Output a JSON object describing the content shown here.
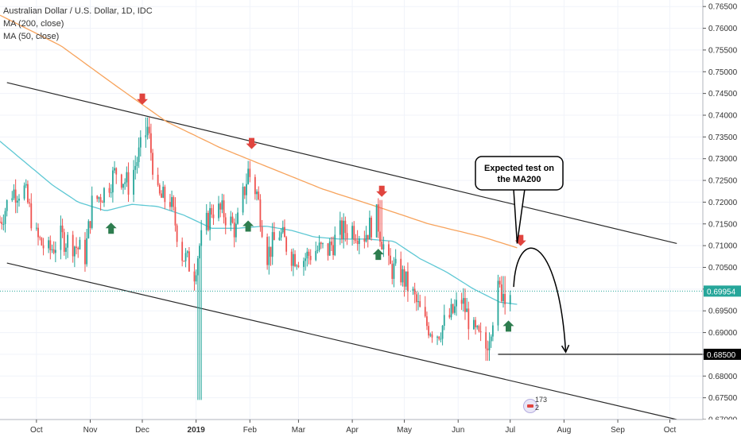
{
  "legend": {
    "title": "Australian Dollar / U.S. Dollar, 1D, IDC",
    "ma200": "MA (200, close)",
    "ma50": "MA (50, close)"
  },
  "colors": {
    "up": "#26a69a",
    "down": "#ef5350",
    "ma200": "#f7a35c",
    "ma50": "#5ec8d4",
    "channel": "#2a2a2a",
    "arrow_down": "#e0443e",
    "arrow_up": "#2e7d4f",
    "current_price": "#26a69a"
  },
  "annotation": {
    "line1": "Expected test on",
    "line2": "the MA200"
  },
  "badge": {
    "text": "173 2"
  },
  "chart_data": {
    "type": "candlestick",
    "y_axis": {
      "range": [
        0.67,
        0.7665
      ],
      "ticks": [
        0.765,
        0.76,
        0.755,
        0.75,
        0.745,
        0.74,
        0.735,
        0.73,
        0.725,
        0.72,
        0.715,
        0.71,
        0.705,
        0.7,
        0.695,
        0.69,
        0.685,
        0.68,
        0.675,
        0.67
      ],
      "tick_labels": [
        "0.76500",
        "0.76000",
        "0.75500",
        "0.75000",
        "0.74500",
        "0.74000",
        "0.73500",
        "0.73000",
        "0.72500",
        "0.72000",
        "0.71500",
        "0.71000",
        "0.70500",
        "0.70000",
        "0.69500",
        "0.69000",
        "0.68500",
        "0.68000",
        "0.67500",
        "0.67000"
      ],
      "current_price": 0.69954,
      "current_label": "0.69954",
      "level_label": "0.68500",
      "level": 0.685
    },
    "x_axis": {
      "range": [
        "2018-09-10",
        "2019-10-20"
      ],
      "ticks": [
        "2018-10-01",
        "2018-11-01",
        "2018-12-01",
        "2019-01-01",
        "2019-02-01",
        "2019-03-01",
        "2019-04-01",
        "2019-05-01",
        "2019-06-01",
        "2019-07-01",
        "2019-08-01",
        "2019-09-01",
        "2019-10-01"
      ],
      "tick_labels": [
        "Oct",
        "Nov",
        "Dec",
        "2019",
        "Feb",
        "Mar",
        "Apr",
        "May",
        "Jun",
        "Jul",
        "Aug",
        "Sep",
        "Oct"
      ],
      "bold_labels": [
        "2019"
      ]
    },
    "close_path": [
      [
        "2018-09-10",
        0.7155
      ],
      [
        "2018-09-17",
        0.7225
      ],
      [
        "2018-09-24",
        0.7228
      ],
      [
        "2018-10-01",
        0.7118
      ],
      [
        "2018-10-08",
        0.7085
      ],
      [
        "2018-10-15",
        0.7118
      ],
      [
        "2018-10-22",
        0.7105
      ],
      [
        "2018-10-29",
        0.7078
      ],
      [
        "2018-11-02",
        0.7195
      ],
      [
        "2018-11-09",
        0.7225
      ],
      [
        "2018-11-16",
        0.7272
      ],
      [
        "2018-11-23",
        0.724
      ],
      [
        "2018-11-30",
        0.732
      ],
      [
        "2018-12-04",
        0.737
      ],
      [
        "2018-12-10",
        0.721
      ],
      [
        "2018-12-17",
        0.7205
      ],
      [
        "2018-12-24",
        0.708
      ],
      [
        "2018-12-31",
        0.704
      ],
      [
        "2019-01-03",
        0.71
      ],
      [
        "2019-01-10",
        0.7185
      ],
      [
        "2019-01-17",
        0.7175
      ],
      [
        "2019-01-24",
        0.7135
      ],
      [
        "2019-01-31",
        0.727
      ],
      [
        "2019-02-05",
        0.722
      ],
      [
        "2019-02-11",
        0.708
      ],
      [
        "2019-02-18",
        0.713
      ],
      [
        "2019-02-25",
        0.708
      ],
      [
        "2019-03-04",
        0.707
      ],
      [
        "2019-03-11",
        0.709
      ],
      [
        "2019-03-18",
        0.709
      ],
      [
        "2019-03-25",
        0.713
      ],
      [
        "2019-04-01",
        0.714
      ],
      [
        "2019-04-08",
        0.7125
      ],
      [
        "2019-04-15",
        0.7165
      ],
      [
        "2019-04-22",
        0.705
      ],
      [
        "2019-04-29",
        0.7035
      ],
      [
        "2019-05-06",
        0.6985
      ],
      [
        "2019-05-13",
        0.692
      ],
      [
        "2019-05-20",
        0.69
      ],
      [
        "2019-05-27",
        0.6935
      ],
      [
        "2019-06-03",
        0.6975
      ],
      [
        "2019-06-10",
        0.69
      ],
      [
        "2019-06-17",
        0.6865
      ],
      [
        "2019-06-24",
        0.6995
      ],
      [
        "2019-07-01",
        0.6995
      ]
    ],
    "wick_extremes": [
      [
        "2018-12-04",
        0.7395,
        "high"
      ],
      [
        "2019-02-01",
        0.7295,
        "high"
      ],
      [
        "2019-04-17",
        0.7205,
        "high"
      ],
      [
        "2019-01-03",
        0.6745,
        "low"
      ],
      [
        "2019-06-18",
        0.6835,
        "low"
      ],
      [
        "2019-06-27",
        0.703,
        "high"
      ]
    ],
    "series": [
      {
        "name": "MA (200, close)",
        "x": [
          "2018-09-10",
          "2018-10-15",
          "2018-11-15",
          "2018-12-15",
          "2019-01-15",
          "2019-02-15",
          "2019-03-15",
          "2019-04-15",
          "2019-05-15",
          "2019-06-15",
          "2019-07-05"
        ],
        "y": [
          0.763,
          0.756,
          0.747,
          0.7385,
          0.7325,
          0.7275,
          0.723,
          0.719,
          0.715,
          0.712,
          0.7095
        ]
      },
      {
        "name": "MA (50, close)",
        "x": [
          "2018-09-10",
          "2018-09-25",
          "2018-10-10",
          "2018-10-25",
          "2018-11-10",
          "2018-11-25",
          "2018-12-10",
          "2018-12-25",
          "2019-01-10",
          "2019-01-25",
          "2019-02-10",
          "2019-02-25",
          "2019-03-10",
          "2019-03-25",
          "2019-04-10",
          "2019-04-25",
          "2019-05-10",
          "2019-05-25",
          "2019-06-10",
          "2019-06-25",
          "2019-07-05"
        ],
        "y": [
          0.734,
          0.729,
          0.724,
          0.72,
          0.718,
          0.7195,
          0.719,
          0.717,
          0.714,
          0.714,
          0.7145,
          0.7135,
          0.712,
          0.7115,
          0.7115,
          0.711,
          0.707,
          0.704,
          0.7,
          0.697,
          0.6965
        ]
      }
    ],
    "channel_lines": [
      {
        "x": [
          "2018-09-14",
          "2019-10-05"
        ],
        "y": [
          0.7475,
          0.7105
        ]
      },
      {
        "x": [
          "2018-09-14",
          "2019-10-05"
        ],
        "y": [
          0.706,
          0.67
        ]
      }
    ],
    "down_arrows": [
      [
        "2018-12-01",
        0.7437
      ],
      [
        "2019-02-02",
        0.7335
      ],
      [
        "2019-04-18",
        0.7225
      ],
      [
        "2019-07-07",
        0.7112
      ]
    ],
    "up_arrows": [
      [
        "2018-11-13",
        0.714
      ],
      [
        "2019-01-31",
        0.7145
      ],
      [
        "2019-04-16",
        0.708
      ],
      [
        "2019-06-30",
        0.6915
      ]
    ],
    "projection": {
      "x": [
        "2019-07-03",
        "2019-07-15",
        "2019-08-02"
      ],
      "y": [
        0.7005,
        0.7095,
        0.6855
      ]
    },
    "callout_anchor": [
      "2019-07-05",
      0.7105
    ]
  }
}
